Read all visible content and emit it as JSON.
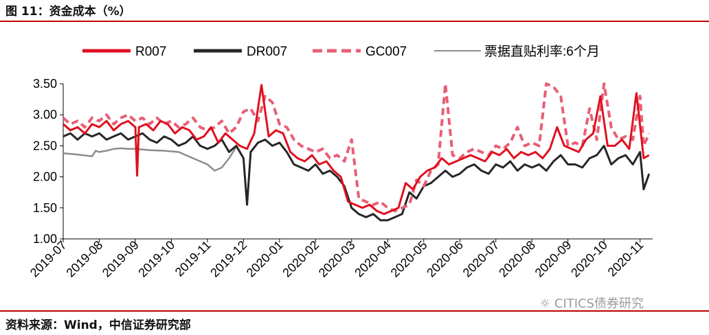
{
  "header": {
    "title": "图 11：资金成本（%）"
  },
  "footer": {
    "source": "资料来源：Wind，中信证券研究部",
    "watermark": "CITICS债券研究"
  },
  "chart_data": {
    "type": "line",
    "title": "资金成本（%）",
    "xlabel": "",
    "ylabel": "",
    "ylim": [
      1.0,
      3.5
    ],
    "yticks": [
      1.0,
      1.5,
      2.0,
      2.5,
      3.0,
      3.5
    ],
    "ytick_labels": [
      "1.00",
      "1.50",
      "2.00",
      "2.50",
      "3.00",
      "3.50"
    ],
    "x_months": [
      "2019-07",
      "2019-08",
      "2019-09",
      "2019-10",
      "2019-11",
      "2019-12",
      "2020-01",
      "2020-02",
      "2020-03",
      "2020-04",
      "2020-05",
      "2020-06",
      "2020-07",
      "2020-08",
      "2020-09",
      "2020-10",
      "2020-11"
    ],
    "xlim": [
      0,
      16.35
    ],
    "legend_position": "top",
    "colors": {
      "R007": "#e0101f",
      "DR007": "#262626",
      "GC007": "#e85f75",
      "票据直贴利率:6个月": "#8c8c8c"
    },
    "series": [
      {
        "name": "R007",
        "color": "#e0101f",
        "style": "solid",
        "x": [
          0,
          0.2,
          0.4,
          0.6,
          0.8,
          1,
          1.2,
          1.4,
          1.6,
          1.8,
          2,
          2.05,
          2.1,
          2.3,
          2.5,
          2.7,
          2.9,
          3.1,
          3.3,
          3.5,
          3.7,
          3.9,
          4.1,
          4.3,
          4.5,
          4.7,
          4.9,
          5.1,
          5.3,
          5.5,
          5.7,
          5.9,
          6.1,
          6.3,
          6.5,
          6.7,
          6.9,
          7.1,
          7.3,
          7.5,
          7.7,
          7.9,
          8.1,
          8.3,
          8.5,
          8.7,
          8.9,
          9.1,
          9.3,
          9.5,
          9.7,
          9.9,
          10.1,
          10.3,
          10.5,
          10.7,
          10.9,
          11.1,
          11.3,
          11.5,
          11.7,
          11.9,
          12.1,
          12.3,
          12.5,
          12.7,
          12.9,
          13.1,
          13.3,
          13.5,
          13.7,
          13.9,
          14.1,
          14.3,
          14.5,
          14.7,
          14.9,
          15.1,
          15.3,
          15.5,
          15.7,
          15.9,
          16.1,
          16.25
        ],
        "values": [
          2.85,
          2.75,
          2.8,
          2.7,
          2.85,
          2.8,
          2.9,
          2.75,
          2.85,
          2.9,
          2.8,
          2.02,
          2.8,
          2.85,
          2.75,
          2.9,
          2.85,
          2.7,
          2.8,
          2.75,
          2.6,
          2.65,
          2.8,
          2.55,
          2.7,
          2.6,
          2.5,
          2.45,
          2.7,
          3.48,
          2.65,
          2.75,
          2.7,
          2.4,
          2.3,
          2.25,
          2.35,
          2.2,
          2.25,
          2.1,
          2.0,
          1.6,
          1.55,
          1.5,
          1.55,
          1.45,
          1.4,
          1.45,
          1.5,
          1.9,
          1.8,
          2.0,
          2.1,
          2.15,
          2.3,
          2.2,
          2.25,
          2.3,
          2.35,
          2.3,
          2.25,
          2.4,
          2.35,
          2.45,
          2.3,
          2.4,
          2.35,
          2.4,
          2.3,
          2.45,
          2.8,
          2.5,
          2.45,
          2.4,
          2.6,
          2.7,
          3.3,
          2.5,
          2.5,
          2.6,
          2.45,
          3.35,
          2.3,
          2.35
        ]
      },
      {
        "name": "DR007",
        "color": "#262626",
        "style": "solid",
        "x": [
          0,
          0.2,
          0.4,
          0.6,
          0.8,
          1,
          1.2,
          1.4,
          1.6,
          1.8,
          2,
          2.2,
          2.4,
          2.6,
          2.8,
          3,
          3.2,
          3.4,
          3.6,
          3.8,
          4,
          4.2,
          4.4,
          4.6,
          4.8,
          5,
          5.1,
          5.2,
          5.4,
          5.6,
          5.8,
          6,
          6.2,
          6.4,
          6.6,
          6.8,
          7,
          7.2,
          7.4,
          7.6,
          7.8,
          8,
          8.2,
          8.4,
          8.6,
          8.8,
          9,
          9.2,
          9.4,
          9.6,
          9.8,
          10,
          10.2,
          10.4,
          10.6,
          10.8,
          11,
          11.2,
          11.4,
          11.6,
          11.8,
          12,
          12.2,
          12.4,
          12.6,
          12.8,
          13,
          13.2,
          13.4,
          13.6,
          13.8,
          14,
          14.2,
          14.4,
          14.6,
          14.8,
          15,
          15.2,
          15.4,
          15.6,
          15.8,
          16,
          16.1,
          16.25
        ],
        "values": [
          2.65,
          2.7,
          2.6,
          2.7,
          2.65,
          2.7,
          2.6,
          2.65,
          2.7,
          2.6,
          2.65,
          2.7,
          2.6,
          2.55,
          2.65,
          2.6,
          2.5,
          2.55,
          2.65,
          2.5,
          2.45,
          2.5,
          2.6,
          2.4,
          2.5,
          2.3,
          1.55,
          2.4,
          2.55,
          2.6,
          2.5,
          2.55,
          2.4,
          2.2,
          2.15,
          2.1,
          2.2,
          2.05,
          2.1,
          2.0,
          1.85,
          1.5,
          1.4,
          1.35,
          1.4,
          1.3,
          1.3,
          1.35,
          1.4,
          1.75,
          1.65,
          1.85,
          1.9,
          2.0,
          2.1,
          2.0,
          2.05,
          2.15,
          2.2,
          2.1,
          2.05,
          2.2,
          2.15,
          2.25,
          2.1,
          2.2,
          2.15,
          2.2,
          2.1,
          2.25,
          2.35,
          2.2,
          2.2,
          2.15,
          2.3,
          2.35,
          2.5,
          2.2,
          2.3,
          2.35,
          2.2,
          2.4,
          1.8,
          2.05
        ]
      },
      {
        "name": "GC007",
        "color": "#e85f75",
        "style": "dashed",
        "x": [
          0,
          0.2,
          0.4,
          0.6,
          0.8,
          1,
          1.2,
          1.4,
          1.6,
          1.8,
          2,
          2.2,
          2.4,
          2.6,
          2.8,
          3,
          3.2,
          3.4,
          3.6,
          3.8,
          4,
          4.2,
          4.4,
          4.6,
          4.8,
          5,
          5.2,
          5.4,
          5.6,
          5.8,
          6,
          6.2,
          6.4,
          6.6,
          6.8,
          7,
          7.2,
          7.4,
          7.6,
          7.8,
          8,
          8.2,
          8.4,
          8.6,
          8.8,
          9,
          9.2,
          9.4,
          9.6,
          9.8,
          10,
          10.2,
          10.4,
          10.6,
          10.8,
          11,
          11.2,
          11.4,
          11.6,
          11.8,
          12,
          12.2,
          12.4,
          12.6,
          12.8,
          13,
          13.2,
          13.4,
          13.6,
          13.8,
          14,
          14.2,
          14.4,
          14.6,
          14.8,
          15,
          15.2,
          15.4,
          15.6,
          15.8,
          16,
          16.1,
          16.25
        ],
        "values": [
          2.95,
          2.85,
          2.9,
          2.8,
          2.95,
          2.9,
          3.0,
          2.85,
          2.95,
          3.0,
          2.9,
          2.95,
          2.85,
          2.95,
          2.85,
          2.9,
          2.8,
          2.85,
          2.95,
          2.8,
          2.75,
          2.8,
          2.9,
          2.7,
          2.8,
          3.05,
          3.1,
          2.9,
          3.3,
          3.2,
          2.85,
          2.8,
          2.6,
          2.5,
          2.45,
          2.4,
          2.45,
          2.3,
          2.35,
          2.25,
          2.6,
          1.65,
          1.6,
          1.55,
          1.6,
          1.5,
          1.45,
          1.5,
          1.55,
          1.95,
          1.85,
          2.1,
          2.2,
          3.5,
          2.35,
          2.3,
          2.4,
          2.45,
          2.4,
          2.35,
          2.5,
          2.45,
          2.55,
          2.8,
          2.5,
          2.55,
          2.5,
          3.5,
          3.45,
          3.3,
          2.5,
          2.55,
          2.5,
          3.1,
          2.6,
          3.5,
          2.8,
          2.6,
          2.65,
          2.6,
          3.3,
          2.5,
          2.7
        ]
      },
      {
        "name": "票据直贴利率:6个月",
        "color": "#8c8c8c",
        "style": "solid",
        "x": [
          0,
          0.4,
          0.8,
          0.9,
          1.0,
          1.2,
          1.4,
          1.6,
          1.8,
          2,
          2.4,
          2.8,
          3.2,
          3.6,
          4,
          4.2,
          4.4,
          4.6,
          4.8
        ],
        "values": [
          2.38,
          2.36,
          2.33,
          2.42,
          2.4,
          2.42,
          2.45,
          2.46,
          2.45,
          2.45,
          2.43,
          2.42,
          2.4,
          2.3,
          2.2,
          2.1,
          2.15,
          2.3,
          2.48
        ]
      }
    ]
  }
}
